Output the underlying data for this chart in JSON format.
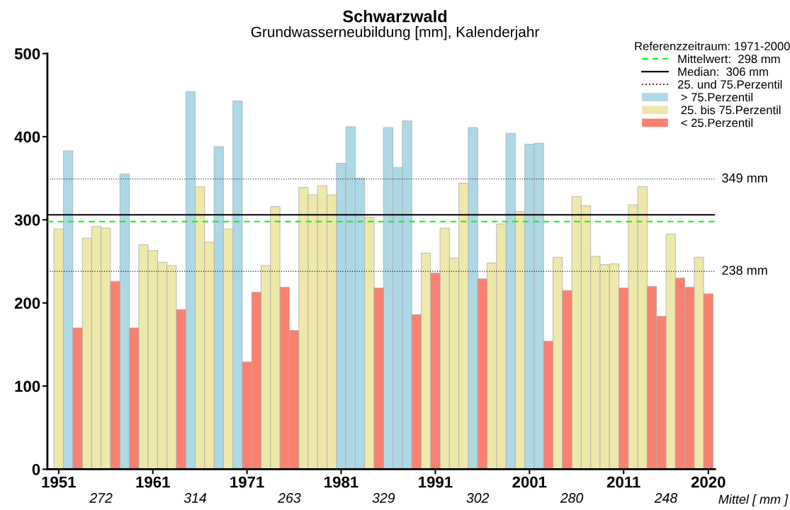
{
  "chart_data": {
    "type": "bar",
    "title": "Schwarzwald",
    "subtitle": "Grundwasserneubildung [mm], Kalenderjahr",
    "legend_title": "Referenzzeitraum: 1971-2000",
    "x": [
      1951,
      1952,
      1953,
      1954,
      1955,
      1956,
      1957,
      1958,
      1959,
      1960,
      1961,
      1962,
      1963,
      1964,
      1965,
      1966,
      1967,
      1968,
      1969,
      1970,
      1971,
      1972,
      1973,
      1974,
      1975,
      1976,
      1977,
      1978,
      1979,
      1980,
      1981,
      1982,
      1983,
      1984,
      1985,
      1986,
      1987,
      1988,
      1989,
      1990,
      1991,
      1992,
      1993,
      1994,
      1995,
      1996,
      1997,
      1998,
      1999,
      2000,
      2001,
      2002,
      2003,
      2004,
      2005,
      2006,
      2007,
      2008,
      2009,
      2010,
      2011,
      2012,
      2013,
      2014,
      2015,
      2016,
      2017,
      2018,
      2019,
      2020
    ],
    "series": [
      {
        "name": " > 75.Perzentil",
        "color": "#add8e6",
        "values": [
          null,
          383,
          null,
          null,
          null,
          null,
          null,
          355,
          null,
          null,
          null,
          null,
          null,
          null,
          454,
          null,
          null,
          388,
          null,
          443,
          null,
          null,
          null,
          null,
          null,
          null,
          null,
          null,
          null,
          null,
          368,
          412,
          350,
          null,
          null,
          411,
          363,
          419,
          null,
          null,
          null,
          null,
          null,
          null,
          411,
          null,
          null,
          null,
          404,
          null,
          391,
          392,
          null,
          null,
          null,
          null,
          null,
          null,
          null,
          null,
          null,
          null,
          null,
          null,
          null,
          null,
          null,
          null,
          null,
          null
        ]
      },
      {
        "name": " 25. bis 75.Perzentil",
        "color": "#eee8aa",
        "values": [
          289,
          null,
          null,
          278,
          292,
          290,
          null,
          null,
          null,
          270,
          263,
          249,
          245,
          null,
          null,
          340,
          273,
          null,
          289,
          null,
          null,
          null,
          245,
          316,
          null,
          null,
          339,
          330,
          341,
          330,
          null,
          null,
          null,
          303,
          null,
          null,
          null,
          null,
          null,
          260,
          null,
          290,
          254,
          344,
          null,
          null,
          248,
          295,
          null,
          310,
          null,
          null,
          null,
          255,
          null,
          328,
          317,
          256,
          246,
          247,
          null,
          318,
          340,
          null,
          null,
          283,
          null,
          null,
          255,
          null
        ]
      },
      {
        "name": " < 25.Perzentil",
        "color": "#fa8072",
        "values": [
          null,
          null,
          170,
          null,
          null,
          null,
          226,
          null,
          170,
          null,
          null,
          null,
          null,
          192,
          null,
          null,
          null,
          null,
          null,
          null,
          129,
          213,
          null,
          null,
          219,
          167,
          null,
          null,
          null,
          null,
          null,
          null,
          null,
          null,
          218,
          null,
          null,
          null,
          186,
          null,
          236,
          null,
          null,
          null,
          null,
          229,
          null,
          null,
          null,
          null,
          null,
          null,
          154,
          null,
          215,
          null,
          null,
          null,
          null,
          null,
          218,
          null,
          null,
          220,
          184,
          null,
          230,
          219,
          null,
          211
        ]
      }
    ],
    "ref_lines": [
      {
        "axis": "y",
        "value": 298,
        "label": "Mittelwert:  298 mm",
        "color": "#00ff00",
        "line_style": "dashed"
      },
      {
        "axis": "y",
        "value": 306,
        "label": "Median:  306 mm",
        "color": "#000000",
        "line_style": "solid"
      },
      {
        "axis": "y",
        "value": 349,
        "label": "349 mm",
        "color": "#000000",
        "line_style": "dotted"
      },
      {
        "axis": "y",
        "value": 238,
        "label": "238 mm",
        "color": "#000000",
        "line_style": "dotted"
      }
    ],
    "annotations": [
      "25. und 75.Perzentil",
      "Mittel [ mm ]",
      "272",
      "314",
      "263",
      "329",
      "302",
      "280",
      "248"
    ],
    "xlim": [
      1949.8,
      2020.7
    ],
    "xticks": [
      1951,
      1961,
      1971,
      1981,
      1991,
      2001,
      2011,
      2020
    ],
    "ylim": [
      0,
      500
    ],
    "yticks": [
      0,
      100,
      200,
      300,
      400,
      500
    ],
    "grid": false,
    "legend": "top right"
  }
}
